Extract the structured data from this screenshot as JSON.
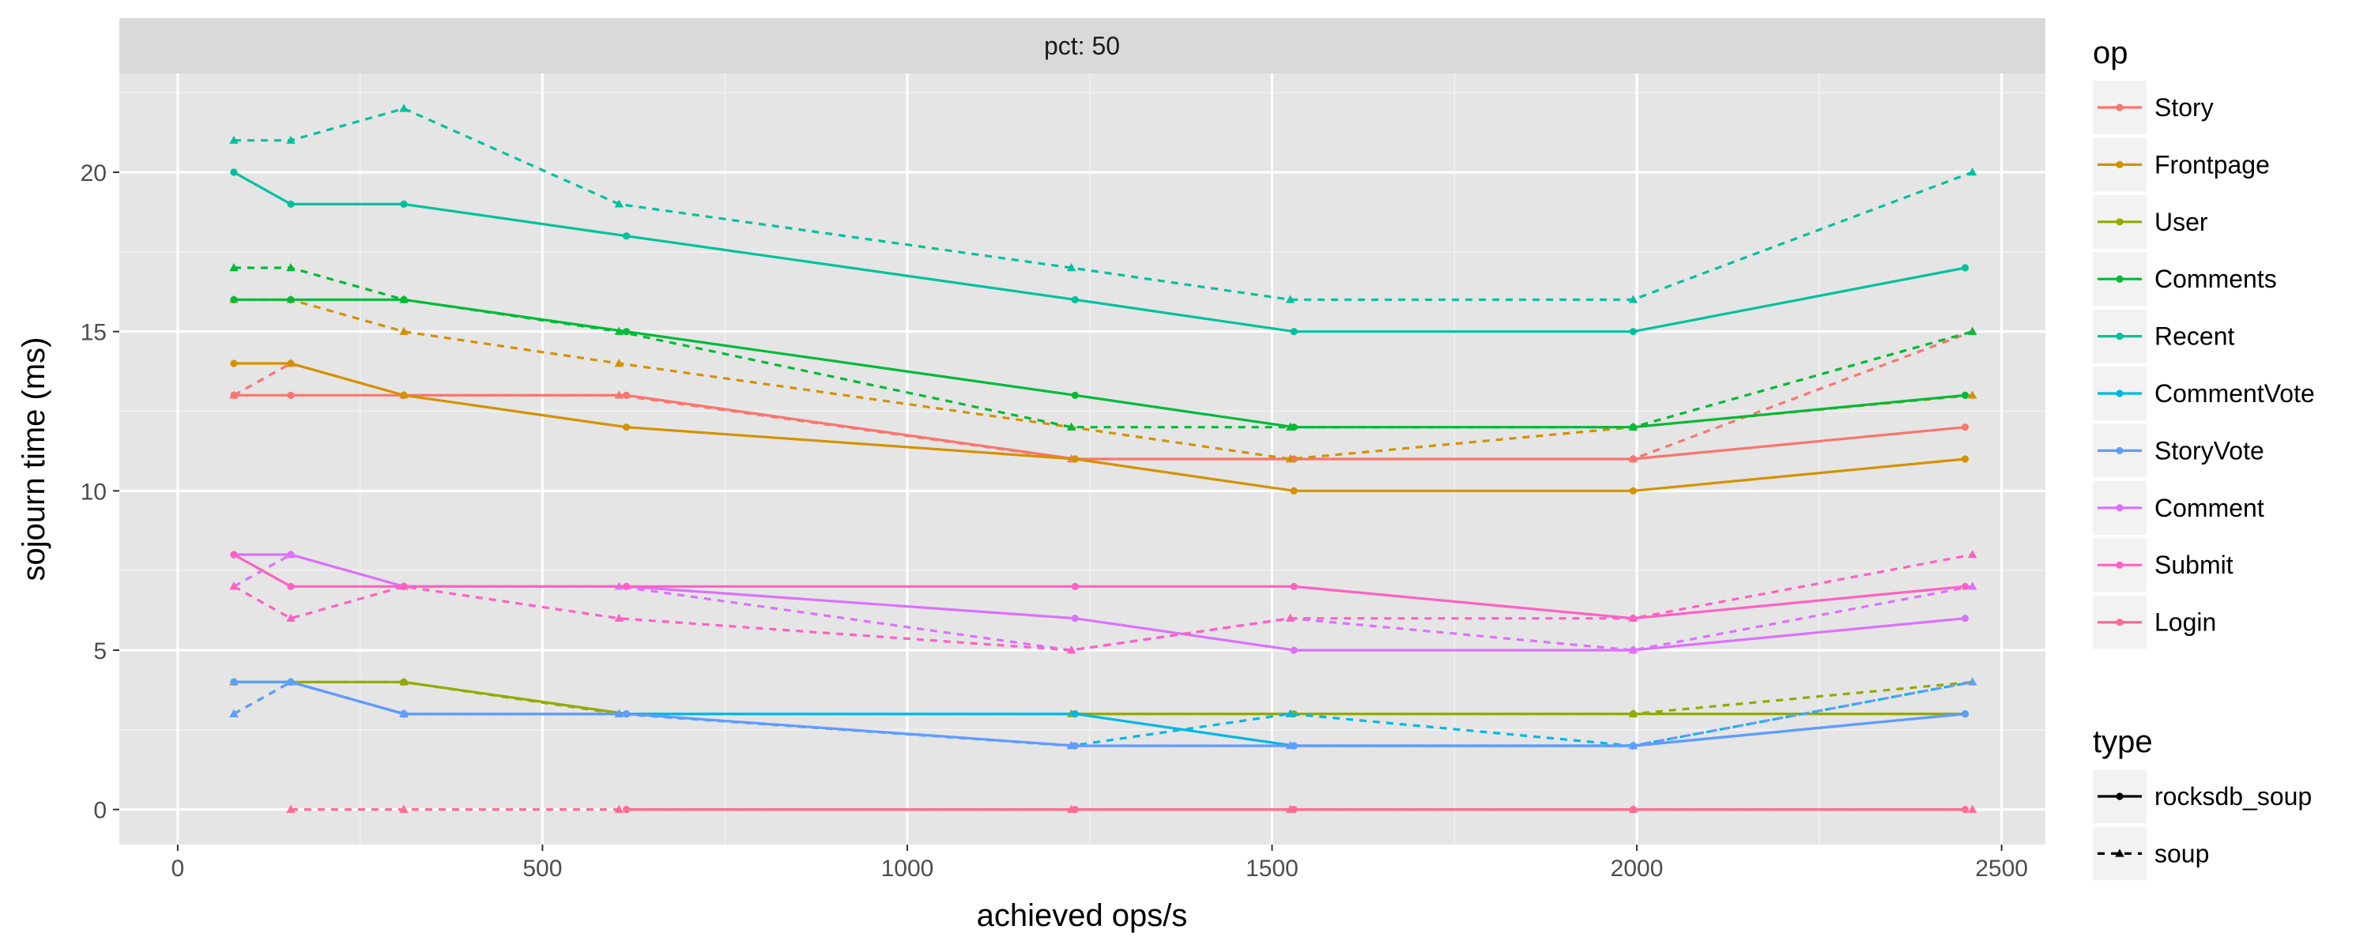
{
  "chart_data": {
    "type": "line",
    "facet_label": "pct: 50",
    "xlabel": "achieved ops/s",
    "ylabel": "sojourn time (ms)",
    "xlim": [
      -80,
      2560
    ],
    "ylim": [
      -1.1,
      23.1
    ],
    "x_ticks": [
      0,
      500,
      1000,
      1500,
      2000,
      2500
    ],
    "x_tick_labels": [
      "0",
      "500",
      "1000",
      "1500",
      "2000",
      "2500"
    ],
    "y_ticks": [
      0,
      5,
      10,
      15,
      20
    ],
    "y_tick_labels": [
      "0",
      "5",
      "10",
      "15",
      "20"
    ],
    "grid": true,
    "background": "#e5e5e5",
    "legend_placement": "right",
    "legend": {
      "op_title": "op",
      "type_title": "type",
      "types": [
        {
          "name": "rocksdb_soup",
          "dash": "solid",
          "marker": "circle"
        },
        {
          "name": "soup",
          "dash": "dashed",
          "marker": "triangle"
        }
      ]
    },
    "ops": [
      {
        "name": "Story",
        "color": "#F8766D"
      },
      {
        "name": "Frontpage",
        "color": "#D39200"
      },
      {
        "name": "User",
        "color": "#93AA00"
      },
      {
        "name": "Comments",
        "color": "#00BA38"
      },
      {
        "name": "Recent",
        "color": "#00C19F"
      },
      {
        "name": "CommentVote",
        "color": "#00B9E3"
      },
      {
        "name": "StoryVote",
        "color": "#619CFF"
      },
      {
        "name": "Comment",
        "color": "#DB72FB"
      },
      {
        "name": "Submit",
        "color": "#FF61C3"
      },
      {
        "name": "Login",
        "color": "#FF6C91"
      }
    ],
    "series": [
      {
        "op": "Story",
        "type": "rocksdb_soup",
        "x": [
          77,
          155,
          310,
          615,
          1230,
          1530,
          1995,
          2450
        ],
        "y": [
          13,
          13,
          13,
          13,
          11,
          11,
          11,
          12
        ]
      },
      {
        "op": "Story",
        "type": "soup",
        "x": [
          77,
          155,
          310,
          605,
          1225,
          1525,
          1995,
          2460
        ],
        "y": [
          13,
          14,
          13,
          13,
          11,
          11,
          11,
          15
        ]
      },
      {
        "op": "Frontpage",
        "type": "rocksdb_soup",
        "x": [
          77,
          155,
          310,
          615,
          1230,
          1530,
          1995,
          2450
        ],
        "y": [
          14,
          14,
          13,
          12,
          11,
          10,
          10,
          11
        ]
      },
      {
        "op": "Frontpage",
        "type": "soup",
        "x": [
          77,
          155,
          310,
          605,
          1225,
          1525,
          1995,
          2460
        ],
        "y": [
          16,
          16,
          15,
          14,
          12,
          11,
          12,
          13
        ]
      },
      {
        "op": "User",
        "type": "rocksdb_soup",
        "x": [
          77,
          155,
          310,
          615,
          1230,
          1530,
          1995,
          2450
        ],
        "y": [
          4,
          4,
          4,
          3,
          3,
          3,
          3,
          3
        ]
      },
      {
        "op": "User",
        "type": "soup",
        "x": [
          77,
          155,
          310,
          605,
          1225,
          1525,
          1995,
          2460
        ],
        "y": [
          4,
          4,
          4,
          3,
          3,
          3,
          3,
          4
        ]
      },
      {
        "op": "Comments",
        "type": "rocksdb_soup",
        "x": [
          77,
          155,
          310,
          615,
          1230,
          1530,
          1995,
          2450
        ],
        "y": [
          16,
          16,
          16,
          15,
          13,
          12,
          12,
          13
        ]
      },
      {
        "op": "Comments",
        "type": "soup",
        "x": [
          77,
          155,
          310,
          605,
          1225,
          1525,
          1995,
          2460
        ],
        "y": [
          17,
          17,
          16,
          15,
          12,
          12,
          12,
          15
        ]
      },
      {
        "op": "Recent",
        "type": "rocksdb_soup",
        "x": [
          77,
          155,
          310,
          615,
          1230,
          1530,
          1995,
          2450
        ],
        "y": [
          20,
          19,
          19,
          18,
          16,
          15,
          15,
          17
        ]
      },
      {
        "op": "Recent",
        "type": "soup",
        "x": [
          77,
          155,
          310,
          605,
          1225,
          1525,
          1995,
          2460
        ],
        "y": [
          21,
          21,
          22,
          19,
          17,
          16,
          16,
          20
        ]
      },
      {
        "op": "CommentVote",
        "type": "rocksdb_soup",
        "x": [
          77,
          155,
          310,
          615,
          1230,
          1530,
          1995,
          2450
        ],
        "y": [
          4,
          4,
          3,
          3,
          3,
          2,
          2,
          3
        ]
      },
      {
        "op": "CommentVote",
        "type": "soup",
        "x": [
          77,
          155,
          310,
          605,
          1225,
          1525,
          1995,
          2460
        ],
        "y": [
          3,
          4,
          3,
          3,
          2,
          3,
          2,
          4
        ]
      },
      {
        "op": "StoryVote",
        "type": "rocksdb_soup",
        "x": [
          77,
          155,
          310,
          615,
          1230,
          1530,
          1995,
          2450
        ],
        "y": [
          4,
          4,
          3,
          3,
          2,
          2,
          2,
          3
        ]
      },
      {
        "op": "StoryVote",
        "type": "soup",
        "x": [
          77,
          155,
          310,
          605,
          1225,
          1525,
          1995,
          2460
        ],
        "y": [
          3,
          4,
          3,
          3,
          2,
          2,
          2,
          4
        ]
      },
      {
        "op": "Comment",
        "type": "rocksdb_soup",
        "x": [
          77,
          155,
          310,
          615,
          1230,
          1530,
          1995,
          2450
        ],
        "y": [
          8,
          8,
          7,
          7,
          6,
          5,
          5,
          6
        ]
      },
      {
        "op": "Comment",
        "type": "soup",
        "x": [
          77,
          155,
          310,
          605,
          1225,
          1525,
          1995,
          2460
        ],
        "y": [
          7,
          8,
          7,
          7,
          5,
          6,
          5,
          7
        ]
      },
      {
        "op": "Submit",
        "type": "rocksdb_soup",
        "x": [
          77,
          155,
          310,
          615,
          1230,
          1530,
          1995,
          2450
        ],
        "y": [
          8,
          7,
          7,
          7,
          7,
          7,
          6,
          7
        ]
      },
      {
        "op": "Submit",
        "type": "soup",
        "x": [
          77,
          155,
          310,
          605,
          1225,
          1525,
          1995,
          2460
        ],
        "y": [
          7,
          6,
          7,
          6,
          5,
          6,
          6,
          8
        ]
      },
      {
        "op": "Login",
        "type": "rocksdb_soup",
        "x": [
          615,
          1230,
          1530,
          1995,
          2450
        ],
        "y": [
          0,
          0,
          0,
          0,
          0
        ]
      },
      {
        "op": "Login",
        "type": "soup",
        "x": [
          155,
          310,
          605,
          1225,
          1525,
          1995,
          2460
        ],
        "y": [
          0,
          0,
          0,
          0,
          0,
          0,
          0
        ]
      }
    ]
  }
}
